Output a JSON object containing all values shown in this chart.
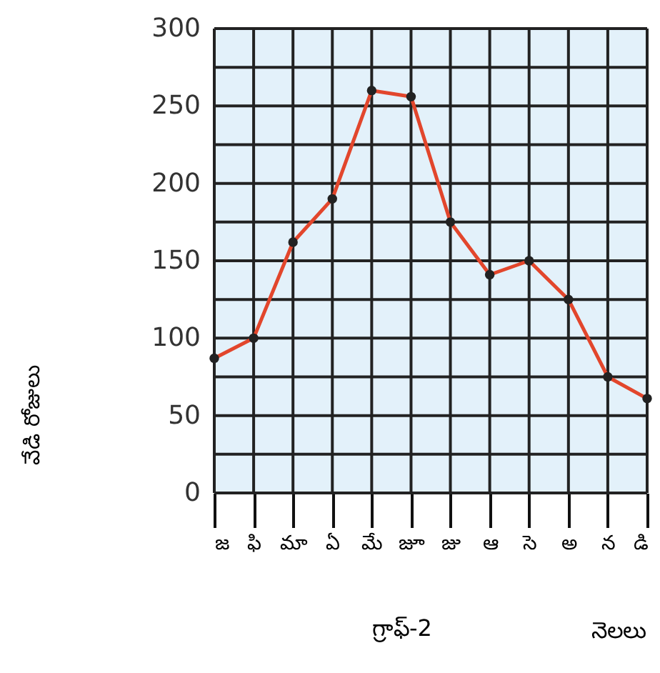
{
  "chart_data": {
    "type": "line",
    "categories": [
      "జ",
      "ఫి",
      "మా",
      "ఏ",
      "మే",
      "జూ",
      "జు",
      "ఆ",
      "సె",
      "అ",
      "న",
      "డి"
    ],
    "series": [
      {
        "color": "#e2462c",
        "values": [
          87,
          100,
          162,
          190,
          260,
          256,
          175,
          141,
          150,
          125,
          75,
          61
        ]
      }
    ],
    "ylim": [
      0,
      300
    ],
    "yticks": [
      0,
      {
        "value": 25,
        "label": null
      },
      50,
      {
        "value": 75,
        "label": null
      },
      100,
      {
        "value": 125,
        "label": null
      },
      150,
      {
        "value": 175,
        "label": null
      },
      200,
      {
        "value": 225,
        "label": null
      },
      250,
      {
        "value": 275,
        "label": null
      },
      300
    ],
    "ylabel": "వేడి రోజులు",
    "xlabel": "నెలలు",
    "annotations": [
      "గ్రాఫ్-2"
    ],
    "grid": true,
    "marker": "circle",
    "line_style": "solid"
  }
}
